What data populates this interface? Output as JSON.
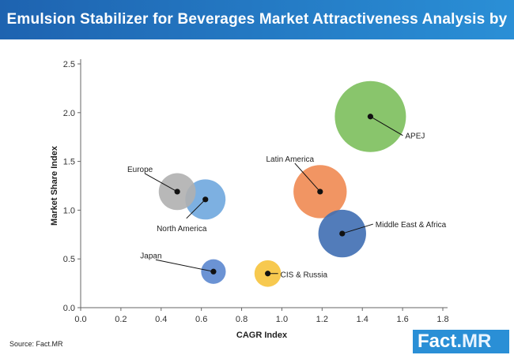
{
  "header": {
    "title": "Emulsion Stabilizer for Beverages Market Attractiveness Analysis by Region"
  },
  "footer": {
    "source": "Source: Fact.MR"
  },
  "brand": {
    "name": "Fact",
    "accent": ".MR"
  },
  "chart_data": {
    "type": "bubble",
    "xlabel": "CAGR Index",
    "ylabel": "Market Share Index",
    "xlim": [
      0,
      1.8
    ],
    "ylim": [
      0,
      2.5
    ],
    "x_ticks": [
      0.0,
      0.2,
      0.4,
      0.6,
      0.8,
      1.0,
      1.2,
      1.4,
      1.6,
      1.8
    ],
    "x_tick_labels": [
      "0.0",
      "0.2",
      "0.4",
      "0.6",
      "0.8",
      "1.0",
      "1.2",
      "1.4",
      "1.6",
      "1.8"
    ],
    "y_ticks": [
      0.0,
      0.5,
      1.0,
      1.5,
      2.0,
      2.5
    ],
    "y_tick_labels": [
      "0.0",
      "0.5",
      "1.0",
      "1.5",
      "2.0",
      "2.5"
    ],
    "grid": false,
    "series": [
      {
        "name": "APEJ",
        "x": 1.44,
        "y": 1.96,
        "size": 1.0,
        "color": "#7cbf5c"
      },
      {
        "name": "Latin America",
        "x": 1.19,
        "y": 1.19,
        "size": 0.56,
        "color": "#ef8a52"
      },
      {
        "name": "Middle East & Africa",
        "x": 1.3,
        "y": 0.76,
        "size": 0.45,
        "color": "#3f6eb3"
      },
      {
        "name": "North America",
        "x": 0.62,
        "y": 1.11,
        "size": 0.32,
        "color": "#6fa7de"
      },
      {
        "name": "Europe",
        "x": 0.48,
        "y": 1.19,
        "size": 0.27,
        "color": "#b0b0b0"
      },
      {
        "name": "Japan",
        "x": 0.66,
        "y": 0.37,
        "size": 0.12,
        "color": "#5b87cf"
      },
      {
        "name": "CIS & Russia",
        "x": 0.93,
        "y": 0.35,
        "size": 0.14,
        "color": "#f6c33c"
      }
    ]
  }
}
